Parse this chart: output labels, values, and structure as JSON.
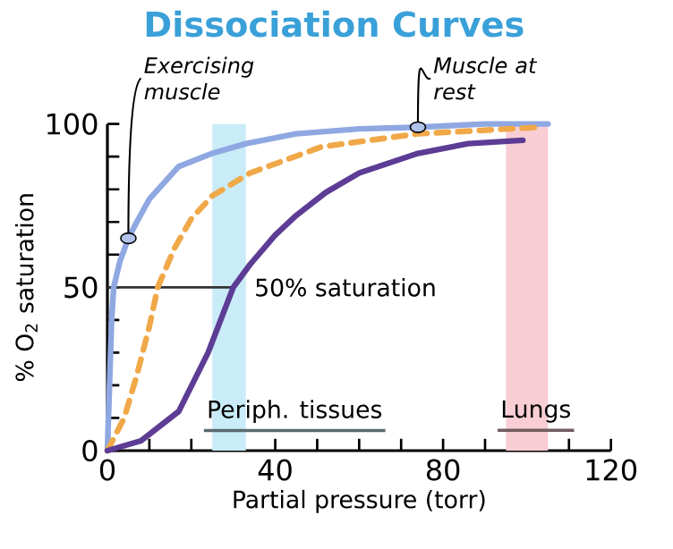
{
  "chart_data": {
    "type": "line",
    "title": "Dissociation Curves",
    "xlabel": "Partial pressure (torr)",
    "ylabel": "% O$_{2}$ saturation",
    "xlim": [
      0,
      120
    ],
    "ylim": [
      0,
      100
    ],
    "xticks": [
      0,
      {
        "value": 10,
        "label": null
      },
      {
        "value": 20,
        "label": null
      },
      {
        "value": 30,
        "label": null
      },
      40,
      {
        "value": 50,
        "label": null
      },
      {
        "value": 60,
        "label": null
      },
      {
        "value": 70,
        "label": null
      },
      80,
      {
        "value": 90,
        "label": null
      },
      {
        "value": 100,
        "label": null
      },
      {
        "value": 110,
        "label": null
      },
      120
    ],
    "yticks": [
      0,
      {
        "value": 10,
        "label": null
      },
      {
        "value": 20,
        "label": null
      },
      {
        "value": 30,
        "label": null
      },
      {
        "value": 40,
        "label": null
      },
      50,
      {
        "value": 60,
        "label": null
      },
      {
        "value": 70,
        "label": null
      },
      {
        "value": 80,
        "label": null
      },
      {
        "value": 90,
        "label": null
      },
      100
    ],
    "marker": "none",
    "series": [
      {
        "color": "#8fa8e2",
        "x": [
          0,
          0.5,
          1,
          1.5,
          3,
          5,
          7,
          10,
          17,
          25,
          33,
          45,
          60,
          74,
          90,
          105
        ],
        "values": [
          0,
          20,
          40,
          50,
          58,
          65,
          70,
          77,
          87,
          91,
          94,
          97,
          98.5,
          99,
          100,
          100
        ]
      },
      {
        "color": "#f0a848",
        "line_style": "dashed",
        "x": [
          0,
          2,
          4,
          7,
          10,
          12,
          16,
          20,
          25,
          34,
          51,
          74,
          103
        ],
        "values": [
          0,
          5,
          10,
          23,
          38,
          50,
          62,
          71,
          78,
          85,
          93,
          97,
          99
        ]
      },
      {
        "color": "#5c3c94",
        "x": [
          0,
          8,
          17,
          24,
          30,
          34,
          40,
          45,
          52,
          60,
          74,
          86,
          99
        ],
        "values": [
          0,
          3,
          12,
          30,
          50,
          57,
          66,
          72,
          79,
          85,
          91,
          94,
          95
        ]
      }
    ],
    "ref_lines": [
      {
        "axis": "y",
        "value": 50,
        "label": "50% saturation",
        "color": "#333333"
      }
    ],
    "bands": [
      {
        "axis": "x",
        "from": 25,
        "to": 33,
        "label": "Periph. tissues",
        "color": "#c9ecf8"
      },
      {
        "axis": "x",
        "from": 95,
        "to": 105,
        "label": "Lungs",
        "color": "#f8cdd4"
      }
    ],
    "annotations": [
      {
        "text": "Exercising muscle",
        "x": 5,
        "y": 65
      },
      {
        "text": "Muscle at rest",
        "x": 74,
        "y": 99
      }
    ]
  }
}
